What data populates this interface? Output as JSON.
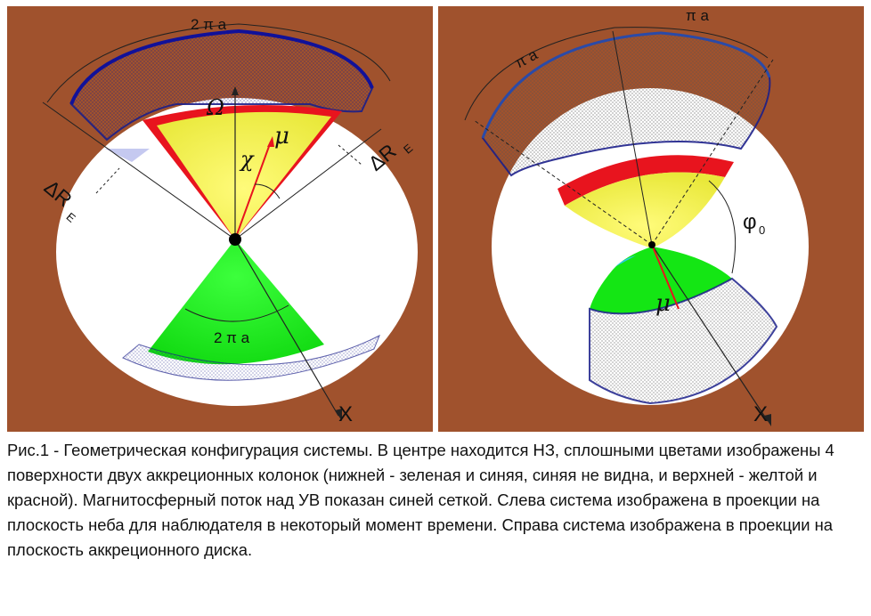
{
  "figure": {
    "left_panel": {
      "label_top_arc": "2 π a",
      "label_omega": "Ω",
      "label_chi": "χ",
      "label_mu": "μ",
      "label_delta_left": "ΔR",
      "label_delta_left_sub": "E",
      "label_delta_right": "ΔR",
      "label_delta_right_sub": "E",
      "label_bottom_arc": "2 π a",
      "label_axis": "X"
    },
    "right_panel": {
      "label_arc_left": "π a",
      "label_arc_right": "π a",
      "label_phi": "φ",
      "label_phi_sub": "0",
      "label_mu": "μ",
      "label_axis": "X"
    },
    "colors": {
      "background": "#a0522d",
      "disk": "#ffffff",
      "yellow_column": "#f5f542",
      "red_column": "#e8141e",
      "green_column": "#14e614",
      "cyan_column": "#2bc9e8",
      "mesh": "#1b1f8a"
    }
  },
  "caption": "Рис.1 - Геометрическая конфигурация системы. В центре находится НЗ, сплошными цветами изображены 4 поверхности двух аккреционных колонок (нижней - зеленая и синяя, синяя не видна, и верхней - желтой и красной). Магнитосферный поток над УВ показан синей сеткой. Слева система изображена в проекции на плоскость неба для наблюдателя в некоторый момент времени. Справа система изображена в проекции на плоскость аккреционного диска."
}
